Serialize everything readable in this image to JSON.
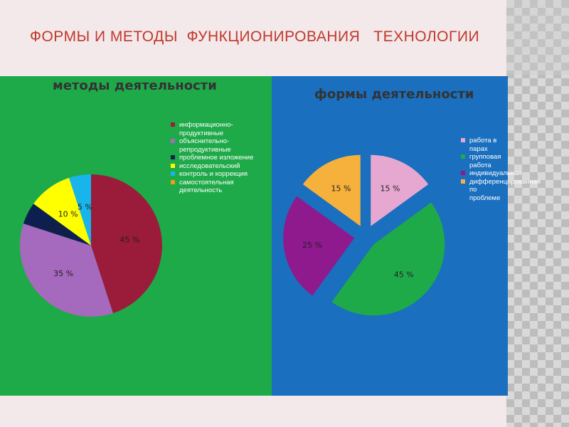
{
  "slide_title": "ФОРМЫ И МЕТОДЫ  ФУНКЦИОНИРОВАНИЯ   ТЕХНОЛОГИИ",
  "colors": {
    "title": "#c0392b",
    "left_panel": "#1faa4a",
    "right_panel": "#1a6fbf"
  },
  "chart_data": [
    {
      "type": "pie",
      "title": "методы деятельности",
      "legend_position": "right",
      "series": [
        {
          "values": [
            {
              "label": "информационно-продуктивные",
              "value": 45,
              "data_label": "45 %",
              "color": "#9b1b3b"
            },
            {
              "label": "объяснительно-репродуктивные",
              "value": 35,
              "data_label": "35 %",
              "color": "#a569bd"
            },
            {
              "label": "проблемное изложение",
              "value": 5,
              "data_label": "5 %",
              "color": "#0d1f4f"
            },
            {
              "label": "исследовательский",
              "value": 10,
              "data_label": "10 %",
              "color": "#ffff00"
            },
            {
              "label": "контроль и коррекция",
              "value": 5,
              "data_label": "5 %",
              "color": "#19b5ea"
            },
            {
              "label": "самостоятельная деятельность",
              "value": 0,
              "data_label": "",
              "color": "#f39c12"
            }
          ]
        }
      ]
    },
    {
      "type": "pie",
      "title": "формы  деятельности",
      "legend_position": "right",
      "exploded": true,
      "series": [
        {
          "values": [
            {
              "label": "работа в парах",
              "value": 15,
              "data_label": "15 %",
              "color": "#e6a8d0"
            },
            {
              "label": "групповая работа",
              "value": 45,
              "data_label": "45 %",
              "color": "#1faa4a"
            },
            {
              "label": "индивидуальная",
              "value": 25,
              "data_label": "25 %",
              "color": "#8e1a8e"
            },
            {
              "label": "дифференцированная по проблеме",
              "value": 15,
              "data_label": "15 %",
              "color": "#f6b13d"
            }
          ]
        }
      ]
    }
  ]
}
